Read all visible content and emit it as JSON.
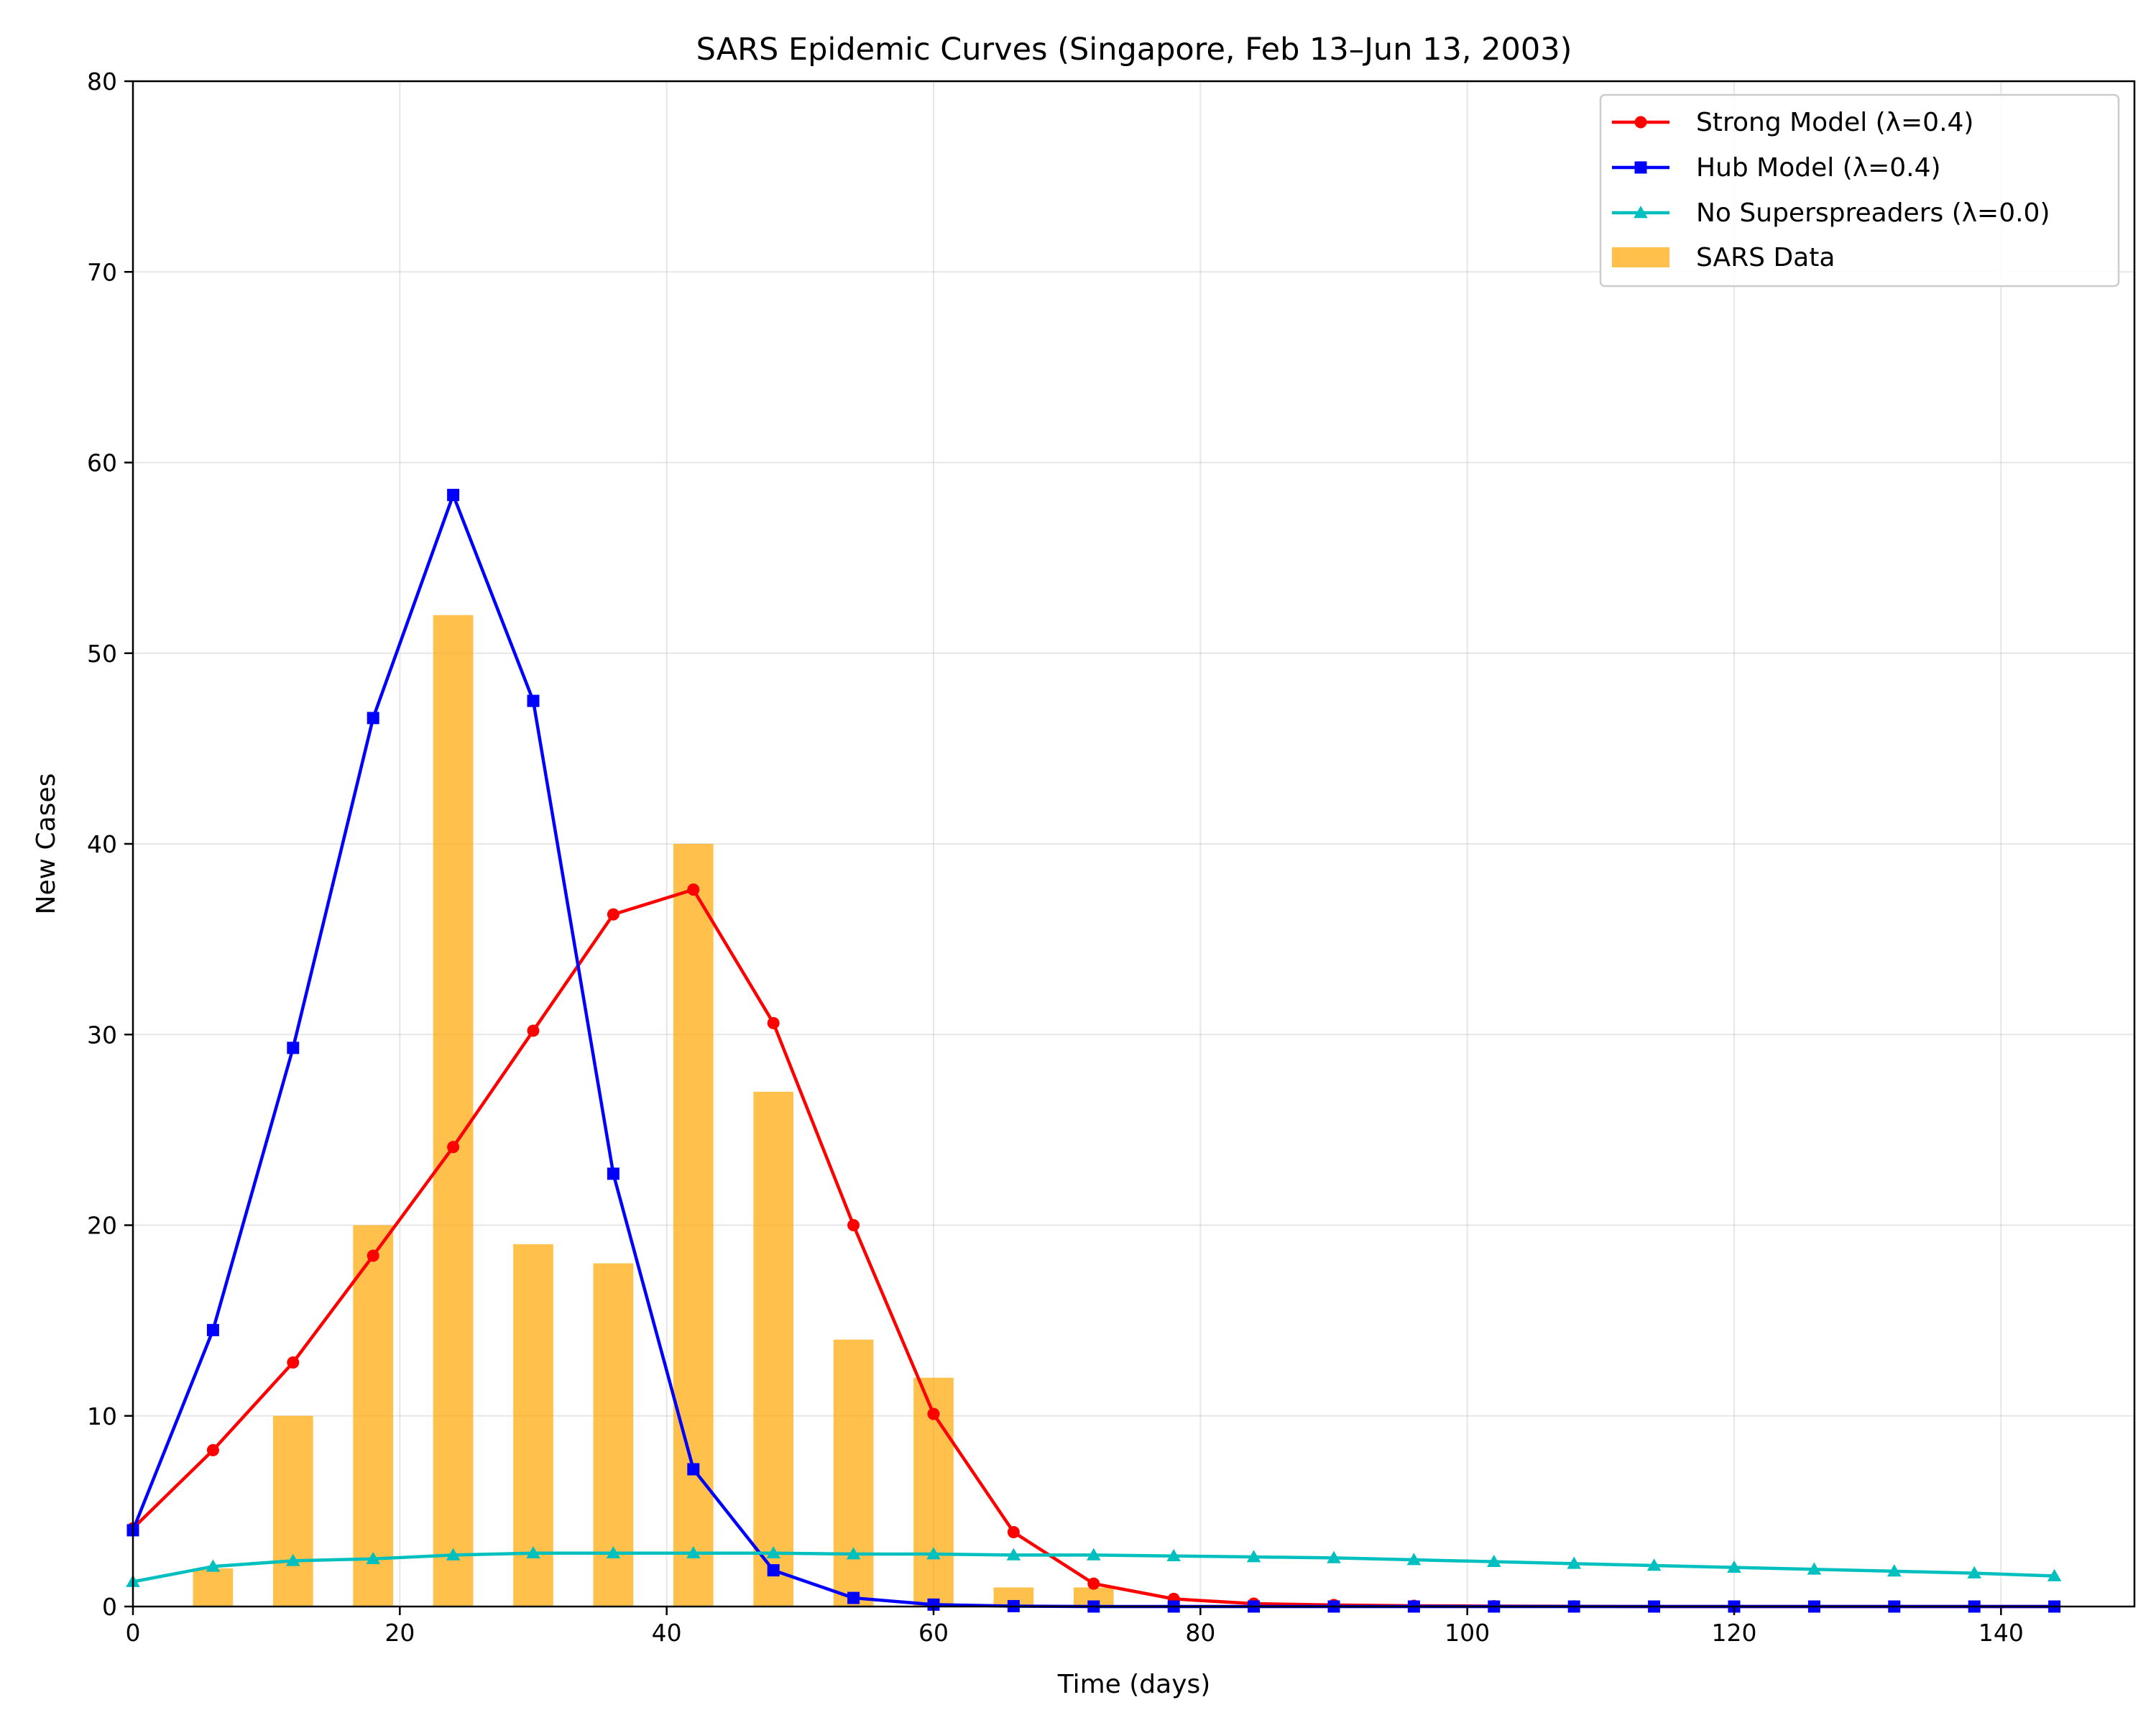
{
  "chart_data": {
    "type": "line",
    "title": "SARS Epidemic Curves (Singapore, Feb 13–Jun 13, 2003)",
    "xlabel": "Time (days)",
    "ylabel": "New Cases",
    "xlim": [
      0,
      150
    ],
    "ylim": [
      0,
      80
    ],
    "x_ticks": [
      0,
      20,
      40,
      60,
      80,
      100,
      120,
      140
    ],
    "y_ticks": [
      0,
      10,
      20,
      30,
      40,
      50,
      60,
      70,
      80
    ],
    "grid": true,
    "legend_position": "top-right",
    "x": [
      0,
      6,
      12,
      18,
      24,
      30,
      36,
      42,
      48,
      54,
      60,
      66,
      72,
      78,
      84,
      90,
      96,
      102,
      108,
      114,
      120,
      126,
      132,
      138,
      144
    ],
    "series": [
      {
        "name": "Strong Model (λ=0.4)",
        "color": "#ff0000",
        "marker": "circle",
        "values": [
          4.1,
          8.2,
          12.8,
          18.4,
          24.1,
          30.2,
          36.3,
          37.6,
          30.6,
          20.0,
          10.1,
          3.9,
          1.2,
          0.4,
          0.15,
          0.08,
          0.04,
          0.02,
          0.01,
          0.0,
          0.0,
          0.0,
          0.0,
          0.0,
          0.0
        ]
      },
      {
        "name": "Hub Model (λ=0.4)",
        "color": "#0000ff",
        "marker": "square",
        "values": [
          4.0,
          14.5,
          29.3,
          46.6,
          58.3,
          47.5,
          22.7,
          7.2,
          1.9,
          0.45,
          0.1,
          0.02,
          0.0,
          0.0,
          0.0,
          0.0,
          0.0,
          0.0,
          0.0,
          0.0,
          0.0,
          0.0,
          0.0,
          0.0,
          0.0
        ]
      },
      {
        "name": "No Superspreaders (λ=0.0)",
        "color": "#00bfbf",
        "marker": "triangle",
        "values": [
          1.3,
          2.1,
          2.4,
          2.5,
          2.7,
          2.8,
          2.8,
          2.8,
          2.8,
          2.75,
          2.75,
          2.7,
          2.7,
          2.65,
          2.6,
          2.55,
          2.45,
          2.35,
          2.25,
          2.15,
          2.05,
          1.95,
          1.85,
          1.75,
          1.6
        ]
      }
    ],
    "bars": {
      "name": "SARS Data",
      "color": "#ffa500",
      "opacity": 0.7,
      "width": 3,
      "x": [
        6,
        12,
        18,
        24,
        30,
        36,
        42,
        48,
        54,
        60,
        66,
        72
      ],
      "values": [
        2,
        10,
        20,
        52,
        19,
        18,
        40,
        27,
        14,
        12,
        1,
        1
      ]
    }
  }
}
